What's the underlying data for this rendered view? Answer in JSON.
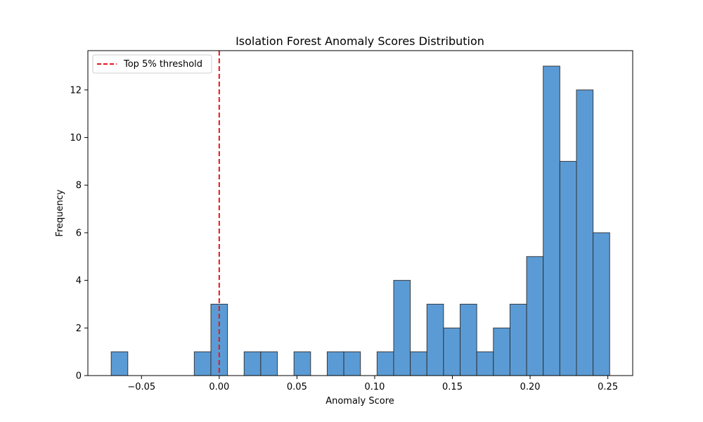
{
  "chart_data": {
    "type": "bar",
    "title": "Isolation Forest Anomaly Scores Distribution",
    "xlabel": "Anomaly Score",
    "ylabel": "Frequency",
    "xlim": [
      -0.0845,
      0.266
    ],
    "ylim": [
      0,
      13.65
    ],
    "xticks": [
      -0.05,
      0.0,
      0.05,
      0.1,
      0.15,
      0.2,
      0.25
    ],
    "xtick_labels": [
      "−0.05",
      "0.00",
      "0.05",
      "0.10",
      "0.15",
      "0.20",
      "0.25"
    ],
    "yticks": [
      0,
      2,
      4,
      6,
      8,
      10,
      12
    ],
    "ytick_labels": [
      "0",
      "2",
      "4",
      "6",
      "8",
      "10",
      "12"
    ],
    "bin_start": -0.0695,
    "bin_width": 0.01069,
    "bin_counts": [
      1,
      0,
      0,
      0,
      0,
      1,
      3,
      0,
      1,
      1,
      0,
      1,
      0,
      1,
      1,
      0,
      1,
      4,
      1,
      3,
      2,
      3,
      1,
      2,
      3,
      5,
      13,
      9,
      12,
      6
    ],
    "bar_color": "#5b9bd5",
    "threshold": {
      "x": 0.0,
      "label": "Top 5% threshold",
      "color": "#e8141d",
      "style": "dashed"
    },
    "legend_position": "top-left",
    "grid": false
  }
}
